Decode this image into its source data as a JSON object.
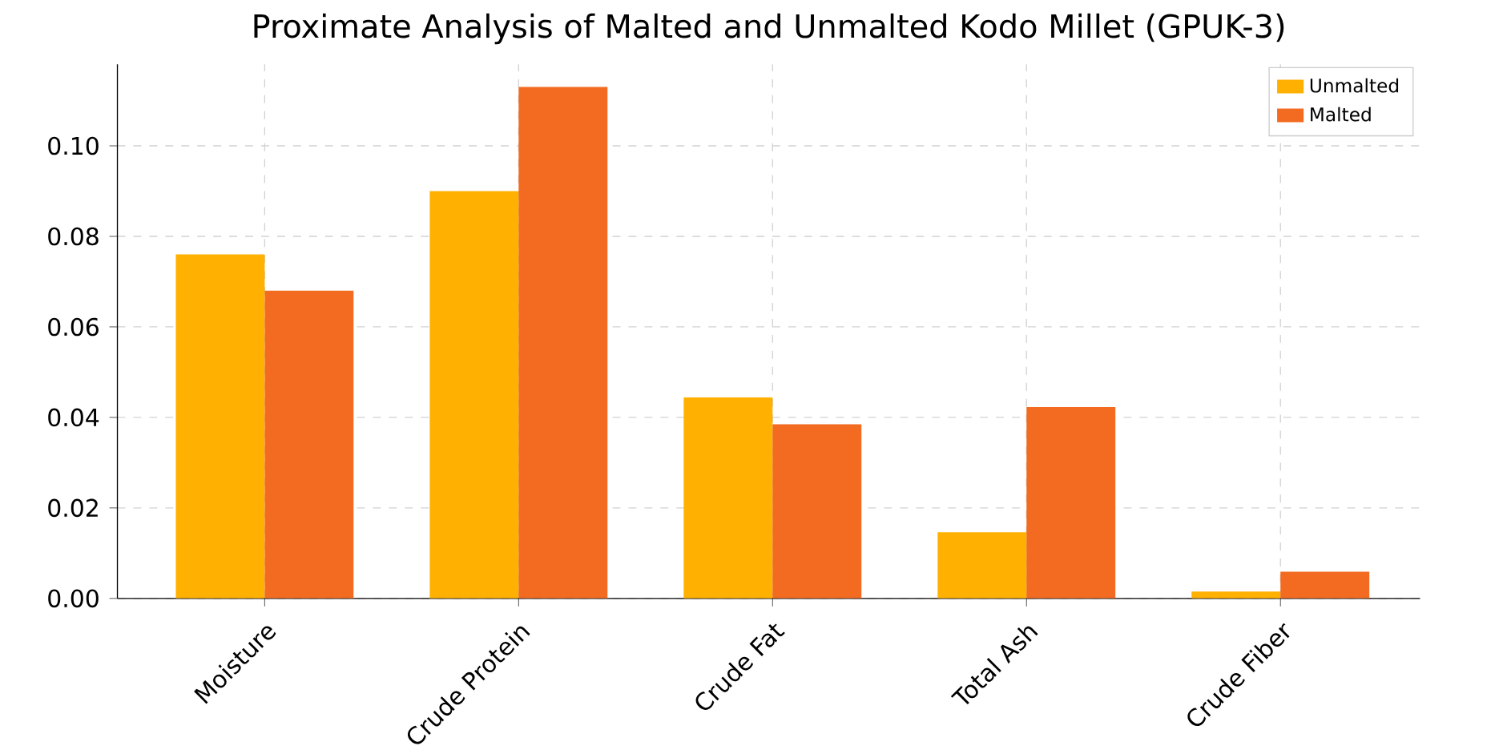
{
  "chart_data": {
    "type": "bar",
    "title": "Proximate Analysis of Malted and Unmalted Kodo Millet (GPUK-3)",
    "categories": [
      "Moisture",
      "Crude Protein",
      "Crude Fat",
      "Total Ash",
      "Crude Fiber"
    ],
    "series": [
      {
        "name": "Unmalted",
        "color": "#ffb000",
        "values": [
          0.076,
          0.09,
          0.0444,
          0.0146,
          0.0015
        ]
      },
      {
        "name": "Malted",
        "color": "#f26b21",
        "values": [
          0.068,
          0.113,
          0.0385,
          0.0423,
          0.0059
        ]
      }
    ],
    "ylim": [
      0,
      0.118
    ],
    "yticks": [
      {
        "value": 0,
        "label": "0.00"
      },
      {
        "value": 0.02,
        "label": "0.02"
      },
      {
        "value": 0.04,
        "label": "0.04"
      },
      {
        "value": 0.06,
        "label": "0.06"
      },
      {
        "value": 0.08,
        "label": "0.08"
      },
      {
        "value": 0.1,
        "label": "0.10"
      }
    ],
    "grid": true,
    "legend": "top right"
  }
}
